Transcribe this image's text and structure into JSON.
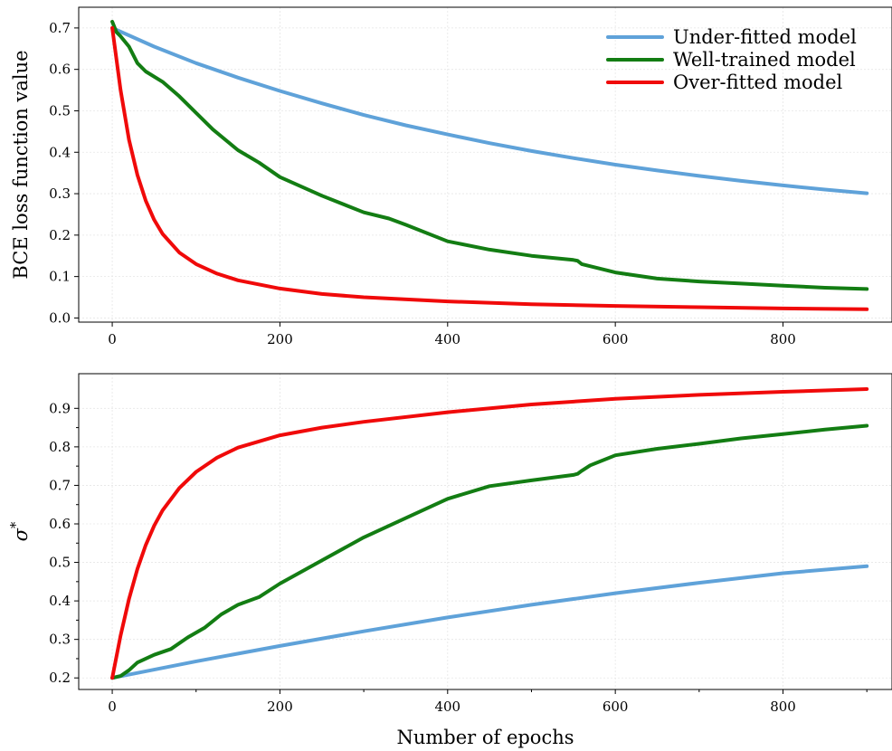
{
  "chart_data": [
    {
      "type": "line",
      "ylabel": "BCE loss function value",
      "xlabel": "",
      "xlim": [
        -40,
        930
      ],
      "ylim": [
        -0.01,
        0.75
      ],
      "xticks": [
        0,
        200,
        400,
        600,
        800
      ],
      "yticks": [
        0.0,
        0.1,
        0.2,
        0.3,
        0.4,
        0.5,
        0.6,
        0.7
      ],
      "ytick_labels": [
        "0.0",
        "0.1",
        "0.2",
        "0.3",
        "0.4",
        "0.5",
        "0.6",
        "0.7"
      ],
      "grid": true,
      "legend": {
        "position": "top-right",
        "entries": [
          "Under-fitted model",
          "Well-trained model",
          "Over-fitted model"
        ]
      },
      "series": [
        {
          "name": "Under-fitted model",
          "color": "#5fa2d9",
          "x": [
            0,
            50,
            100,
            150,
            200,
            250,
            300,
            350,
            400,
            450,
            500,
            550,
            600,
            650,
            700,
            750,
            800,
            850,
            900
          ],
          "y": [
            0.7,
            0.655,
            0.615,
            0.58,
            0.548,
            0.518,
            0.49,
            0.465,
            0.443,
            0.422,
            0.403,
            0.386,
            0.37,
            0.356,
            0.343,
            0.331,
            0.32,
            0.31,
            0.301
          ]
        },
        {
          "name": "Well-trained model",
          "color": "#137d13",
          "x": [
            0,
            5,
            10,
            20,
            30,
            40,
            60,
            80,
            100,
            120,
            150,
            175,
            200,
            250,
            300,
            330,
            350,
            400,
            450,
            500,
            550,
            555,
            560,
            600,
            650,
            700,
            750,
            800,
            850,
            900
          ],
          "y": [
            0.715,
            0.69,
            0.68,
            0.655,
            0.615,
            0.595,
            0.57,
            0.535,
            0.495,
            0.455,
            0.405,
            0.375,
            0.34,
            0.295,
            0.255,
            0.24,
            0.225,
            0.185,
            0.165,
            0.15,
            0.14,
            0.138,
            0.13,
            0.11,
            0.095,
            0.088,
            0.083,
            0.078,
            0.073,
            0.07
          ]
        },
        {
          "name": "Over-fitted model",
          "color": "#f00a0a",
          "x": [
            0,
            10,
            20,
            30,
            40,
            50,
            60,
            80,
            100,
            125,
            150,
            200,
            250,
            300,
            400,
            500,
            600,
            700,
            800,
            900
          ],
          "y": [
            0.7,
            0.55,
            0.43,
            0.345,
            0.283,
            0.237,
            0.203,
            0.158,
            0.13,
            0.107,
            0.091,
            0.071,
            0.058,
            0.05,
            0.04,
            0.033,
            0.029,
            0.026,
            0.023,
            0.021
          ]
        }
      ]
    },
    {
      "type": "line",
      "ylabel": "σ*",
      "ylabel_main": "σ",
      "ylabel_sup": "*",
      "xlabel": "Number of epochs",
      "xlim": [
        -40,
        930
      ],
      "ylim": [
        0.17,
        0.99
      ],
      "xticks": [
        0,
        200,
        400,
        600,
        800
      ],
      "yticks": [
        0.2,
        0.3,
        0.4,
        0.5,
        0.6,
        0.7,
        0.8,
        0.9
      ],
      "ytick_labels": [
        "0.2",
        "0.3",
        "0.4",
        "0.5",
        "0.6",
        "0.7",
        "0.8",
        "0.9"
      ],
      "grid": true,
      "series": [
        {
          "name": "Under-fitted model",
          "color": "#5fa2d9",
          "x": [
            0,
            100,
            200,
            300,
            400,
            500,
            600,
            700,
            800,
            900
          ],
          "y": [
            0.2,
            0.243,
            0.283,
            0.321,
            0.357,
            0.39,
            0.42,
            0.447,
            0.472,
            0.49
          ]
        },
        {
          "name": "Well-trained model",
          "color": "#137d13",
          "x": [
            0,
            10,
            20,
            30,
            50,
            70,
            90,
            110,
            130,
            150,
            175,
            200,
            250,
            300,
            350,
            400,
            450,
            500,
            550,
            555,
            560,
            570,
            600,
            650,
            700,
            750,
            800,
            850,
            900
          ],
          "y": [
            0.2,
            0.205,
            0.22,
            0.24,
            0.26,
            0.275,
            0.305,
            0.33,
            0.365,
            0.39,
            0.41,
            0.445,
            0.505,
            0.565,
            0.615,
            0.665,
            0.698,
            0.713,
            0.727,
            0.73,
            0.738,
            0.752,
            0.778,
            0.795,
            0.808,
            0.822,
            0.833,
            0.845,
            0.855
          ]
        },
        {
          "name": "Over-fitted model",
          "color": "#f00a0a",
          "x": [
            0,
            10,
            20,
            30,
            40,
            50,
            60,
            80,
            100,
            125,
            150,
            200,
            250,
            300,
            400,
            500,
            600,
            700,
            800,
            900
          ],
          "y": [
            0.2,
            0.31,
            0.405,
            0.483,
            0.545,
            0.595,
            0.635,
            0.693,
            0.735,
            0.772,
            0.798,
            0.83,
            0.85,
            0.865,
            0.89,
            0.91,
            0.925,
            0.935,
            0.943,
            0.95
          ]
        }
      ]
    }
  ]
}
